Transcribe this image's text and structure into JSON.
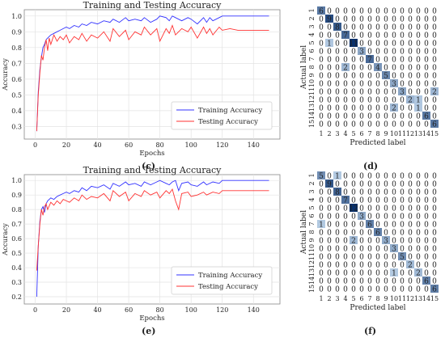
{
  "panel_labels": [
    "(c)",
    "(d)",
    "(e)",
    "(f)"
  ],
  "colors": {
    "train": "#3333ff",
    "test": "#ff3333",
    "grid": "#e3e3e3",
    "cm_dark": "#08306b",
    "cm_mid": "#4292c6",
    "cm_light": "#c6dbef"
  },
  "chart_data": [
    {
      "type": "line",
      "panel": "(c)",
      "title": "Training and Testing Accuracy",
      "xlabel": "Epochs",
      "ylabel": "Accuracy",
      "xlim": [
        -7,
        157
      ],
      "ylim": [
        0.22,
        1.04
      ],
      "xticks": [
        0,
        20,
        40,
        60,
        80,
        100,
        120,
        140
      ],
      "yticks": [
        0.3,
        0.4,
        0.5,
        0.6,
        0.7,
        0.8,
        0.9,
        1.0
      ],
      "grid": true,
      "legend_position": "lower-right",
      "series": [
        {
          "name": "Training Accuracy",
          "color": "#3333ff",
          "x": [
            1,
            2,
            3,
            4,
            5,
            6,
            7,
            8,
            9,
            10,
            12,
            14,
            16,
            18,
            20,
            22,
            25,
            28,
            30,
            33,
            36,
            40,
            44,
            48,
            50,
            54,
            58,
            60,
            64,
            68,
            70,
            74,
            78,
            80,
            84,
            86,
            88,
            90,
            94,
            98,
            100,
            104,
            108,
            110,
            112,
            114,
            118,
            120,
            125,
            130,
            135,
            140,
            145,
            150
          ],
          "y": [
            0.27,
            0.52,
            0.66,
            0.74,
            0.8,
            0.82,
            0.85,
            0.86,
            0.87,
            0.88,
            0.89,
            0.9,
            0.91,
            0.92,
            0.93,
            0.92,
            0.94,
            0.93,
            0.95,
            0.94,
            0.96,
            0.95,
            0.97,
            0.96,
            0.98,
            0.96,
            0.99,
            0.97,
            0.98,
            0.97,
            0.99,
            0.96,
            0.98,
            1.0,
            0.99,
            0.97,
            1.0,
            0.99,
            0.97,
            0.99,
            0.98,
            0.95,
            0.99,
            0.96,
            0.99,
            0.97,
            0.99,
            1.0,
            1.0,
            1.0,
            1.0,
            1.0,
            1.0,
            1.0
          ]
        },
        {
          "name": "Testing Accuracy",
          "color": "#ff3333",
          "x": [
            1,
            2,
            3,
            4,
            5,
            6,
            7,
            8,
            9,
            10,
            12,
            14,
            16,
            18,
            20,
            22,
            25,
            28,
            30,
            33,
            36,
            40,
            44,
            48,
            50,
            54,
            58,
            60,
            64,
            68,
            70,
            74,
            78,
            80,
            84,
            86,
            88,
            90,
            94,
            98,
            100,
            104,
            108,
            110,
            112,
            114,
            118,
            120,
            125,
            130,
            135,
            140,
            145,
            150
          ],
          "y": [
            0.27,
            0.5,
            0.64,
            0.75,
            0.72,
            0.8,
            0.85,
            0.78,
            0.86,
            0.82,
            0.88,
            0.84,
            0.87,
            0.85,
            0.88,
            0.83,
            0.87,
            0.85,
            0.89,
            0.84,
            0.88,
            0.86,
            0.9,
            0.84,
            0.92,
            0.87,
            0.91,
            0.85,
            0.9,
            0.88,
            0.93,
            0.88,
            0.92,
            0.84,
            0.92,
            0.89,
            0.94,
            0.88,
            0.92,
            0.9,
            0.93,
            0.86,
            0.93,
            0.89,
            0.92,
            0.88,
            0.93,
            0.91,
            0.92,
            0.91,
            0.91,
            0.91,
            0.91,
            0.91
          ]
        }
      ]
    },
    {
      "type": "heatmap",
      "panel": "(d)",
      "xlabel": "Predicted label",
      "ylabel": "Actual label",
      "labels": [
        "1",
        "2",
        "3",
        "4",
        "5",
        "6",
        "7",
        "8",
        "9",
        "10",
        "11",
        "12",
        "13",
        "14",
        "15"
      ],
      "matrix": [
        [
          6,
          0,
          0,
          0,
          0,
          0,
          0,
          0,
          0,
          0,
          0,
          0,
          0,
          0,
          0
        ],
        [
          0,
          9,
          0,
          0,
          0,
          0,
          0,
          0,
          0,
          0,
          0,
          0,
          0,
          0,
          0
        ],
        [
          0,
          0,
          8,
          0,
          0,
          0,
          0,
          0,
          0,
          0,
          0,
          0,
          0,
          0,
          0
        ],
        [
          0,
          0,
          0,
          7,
          0,
          0,
          0,
          0,
          0,
          0,
          0,
          0,
          0,
          0,
          0
        ],
        [
          0,
          1,
          0,
          0,
          11,
          0,
          0,
          0,
          0,
          0,
          0,
          0,
          0,
          0,
          0
        ],
        [
          0,
          0,
          0,
          0,
          0,
          3,
          0,
          0,
          0,
          0,
          0,
          0,
          0,
          0,
          0
        ],
        [
          0,
          0,
          0,
          0,
          0,
          0,
          7,
          0,
          0,
          0,
          0,
          0,
          0,
          0,
          0
        ],
        [
          0,
          0,
          0,
          2,
          0,
          0,
          0,
          4,
          0,
          0,
          0,
          0,
          0,
          0,
          0
        ],
        [
          0,
          0,
          0,
          0,
          0,
          0,
          0,
          0,
          5,
          0,
          0,
          0,
          0,
          0,
          0
        ],
        [
          0,
          0,
          0,
          0,
          0,
          0,
          0,
          0,
          0,
          3,
          0,
          0,
          0,
          0,
          0
        ],
        [
          0,
          0,
          0,
          0,
          0,
          0,
          0,
          0,
          0,
          0,
          3,
          0,
          0,
          0,
          2
        ],
        [
          0,
          0,
          0,
          0,
          0,
          0,
          0,
          0,
          0,
          0,
          0,
          2,
          1,
          0,
          0
        ],
        [
          0,
          0,
          0,
          0,
          0,
          0,
          0,
          0,
          0,
          2,
          0,
          0,
          1,
          0,
          0
        ],
        [
          0,
          0,
          0,
          0,
          0,
          0,
          0,
          0,
          0,
          0,
          0,
          0,
          0,
          6,
          0
        ],
        [
          0,
          0,
          0,
          0,
          0,
          0,
          0,
          0,
          0,
          0,
          0,
          0,
          0,
          0,
          6
        ]
      ]
    },
    {
      "type": "line",
      "panel": "(e)",
      "title": "Training and Testing Accuracy",
      "xlabel": "Epochs",
      "ylabel": "Accuracy",
      "xlim": [
        -7,
        157
      ],
      "ylim": [
        0.15,
        1.04
      ],
      "xticks": [
        0,
        20,
        40,
        60,
        80,
        100,
        120,
        140
      ],
      "yticks": [
        0.2,
        0.3,
        0.4,
        0.5,
        0.6,
        0.7,
        0.8,
        0.9,
        1.0
      ],
      "grid": true,
      "legend_position": "lower-right",
      "series": [
        {
          "name": "Training Accuracy",
          "color": "#3333ff",
          "x": [
            1,
            2,
            3,
            4,
            5,
            6,
            7,
            8,
            10,
            12,
            14,
            16,
            18,
            20,
            22,
            25,
            28,
            30,
            33,
            36,
            40,
            44,
            48,
            50,
            54,
            58,
            60,
            64,
            68,
            70,
            74,
            78,
            80,
            84,
            86,
            88,
            90,
            92,
            94,
            98,
            100,
            104,
            108,
            110,
            114,
            118,
            120,
            125,
            130,
            135,
            140,
            145,
            150
          ],
          "y": [
            0.2,
            0.55,
            0.72,
            0.8,
            0.82,
            0.78,
            0.84,
            0.86,
            0.88,
            0.87,
            0.89,
            0.9,
            0.91,
            0.92,
            0.91,
            0.93,
            0.92,
            0.95,
            0.93,
            0.96,
            0.95,
            0.97,
            0.94,
            0.98,
            0.96,
            0.99,
            0.97,
            0.98,
            0.96,
            0.99,
            0.97,
            0.99,
            1.0,
            0.98,
            0.97,
            0.99,
            1.0,
            0.93,
            0.98,
            0.99,
            0.97,
            0.96,
            0.99,
            0.97,
            0.99,
            0.98,
            1.0,
            1.0,
            1.0,
            1.0,
            1.0,
            1.0,
            1.0
          ]
        },
        {
          "name": "Testing Accuracy",
          "color": "#ff3333",
          "x": [
            1,
            2,
            3,
            4,
            5,
            6,
            7,
            8,
            10,
            12,
            14,
            16,
            18,
            20,
            22,
            25,
            28,
            30,
            33,
            36,
            40,
            44,
            48,
            50,
            54,
            58,
            60,
            64,
            68,
            70,
            74,
            78,
            80,
            84,
            86,
            88,
            90,
            92,
            94,
            98,
            100,
            104,
            108,
            110,
            114,
            118,
            120,
            125,
            130,
            135,
            140,
            145,
            150
          ],
          "y": [
            0.38,
            0.55,
            0.7,
            0.8,
            0.76,
            0.82,
            0.84,
            0.8,
            0.85,
            0.83,
            0.86,
            0.84,
            0.87,
            0.86,
            0.85,
            0.88,
            0.86,
            0.9,
            0.87,
            0.89,
            0.88,
            0.91,
            0.86,
            0.93,
            0.89,
            0.92,
            0.86,
            0.91,
            0.89,
            0.93,
            0.9,
            0.92,
            0.88,
            0.93,
            0.91,
            0.94,
            0.86,
            0.8,
            0.91,
            0.92,
            0.89,
            0.9,
            0.92,
            0.9,
            0.92,
            0.91,
            0.93,
            0.93,
            0.93,
            0.93,
            0.93,
            0.93,
            0.93
          ]
        }
      ]
    },
    {
      "type": "heatmap",
      "panel": "(f)",
      "xlabel": "Predicted label",
      "ylabel": "Actual label",
      "labels": [
        "1",
        "2",
        "3",
        "4",
        "5",
        "6",
        "7",
        "8",
        "9",
        "10",
        "11",
        "12",
        "13",
        "14",
        "15"
      ],
      "matrix": [
        [
          5,
          0,
          1,
          0,
          0,
          0,
          0,
          0,
          0,
          0,
          0,
          0,
          0,
          0,
          0
        ],
        [
          0,
          9,
          0,
          0,
          0,
          0,
          0,
          0,
          0,
          0,
          0,
          0,
          0,
          0,
          0
        ],
        [
          0,
          0,
          8,
          0,
          0,
          0,
          0,
          0,
          0,
          0,
          0,
          0,
          0,
          0,
          0
        ],
        [
          0,
          0,
          0,
          7,
          0,
          0,
          0,
          0,
          0,
          0,
          0,
          0,
          0,
          0,
          0
        ],
        [
          0,
          0,
          0,
          0,
          12,
          0,
          0,
          0,
          0,
          0,
          0,
          0,
          0,
          0,
          0
        ],
        [
          0,
          0,
          0,
          0,
          0,
          3,
          0,
          0,
          0,
          0,
          0,
          0,
          0,
          0,
          0
        ],
        [
          1,
          0,
          0,
          0,
          0,
          0,
          6,
          0,
          0,
          0,
          0,
          0,
          0,
          0,
          0
        ],
        [
          0,
          0,
          0,
          0,
          0,
          0,
          0,
          6,
          0,
          0,
          0,
          0,
          0,
          0,
          0
        ],
        [
          0,
          0,
          0,
          0,
          2,
          0,
          0,
          0,
          3,
          0,
          0,
          0,
          0,
          0,
          0
        ],
        [
          0,
          0,
          0,
          0,
          0,
          0,
          0,
          0,
          0,
          3,
          0,
          0,
          0,
          0,
          0
        ],
        [
          0,
          0,
          0,
          0,
          0,
          0,
          0,
          0,
          0,
          0,
          5,
          0,
          0,
          0,
          0
        ],
        [
          0,
          0,
          0,
          0,
          0,
          0,
          0,
          0,
          0,
          0,
          0,
          2,
          0,
          0,
          0
        ],
        [
          0,
          0,
          0,
          0,
          0,
          0,
          0,
          0,
          0,
          1,
          0,
          0,
          2,
          0,
          0
        ],
        [
          0,
          0,
          0,
          0,
          0,
          0,
          0,
          0,
          0,
          0,
          0,
          0,
          0,
          6,
          0
        ],
        [
          0,
          0,
          0,
          0,
          0,
          0,
          0,
          0,
          0,
          0,
          0,
          0,
          0,
          0,
          6
        ]
      ]
    }
  ]
}
